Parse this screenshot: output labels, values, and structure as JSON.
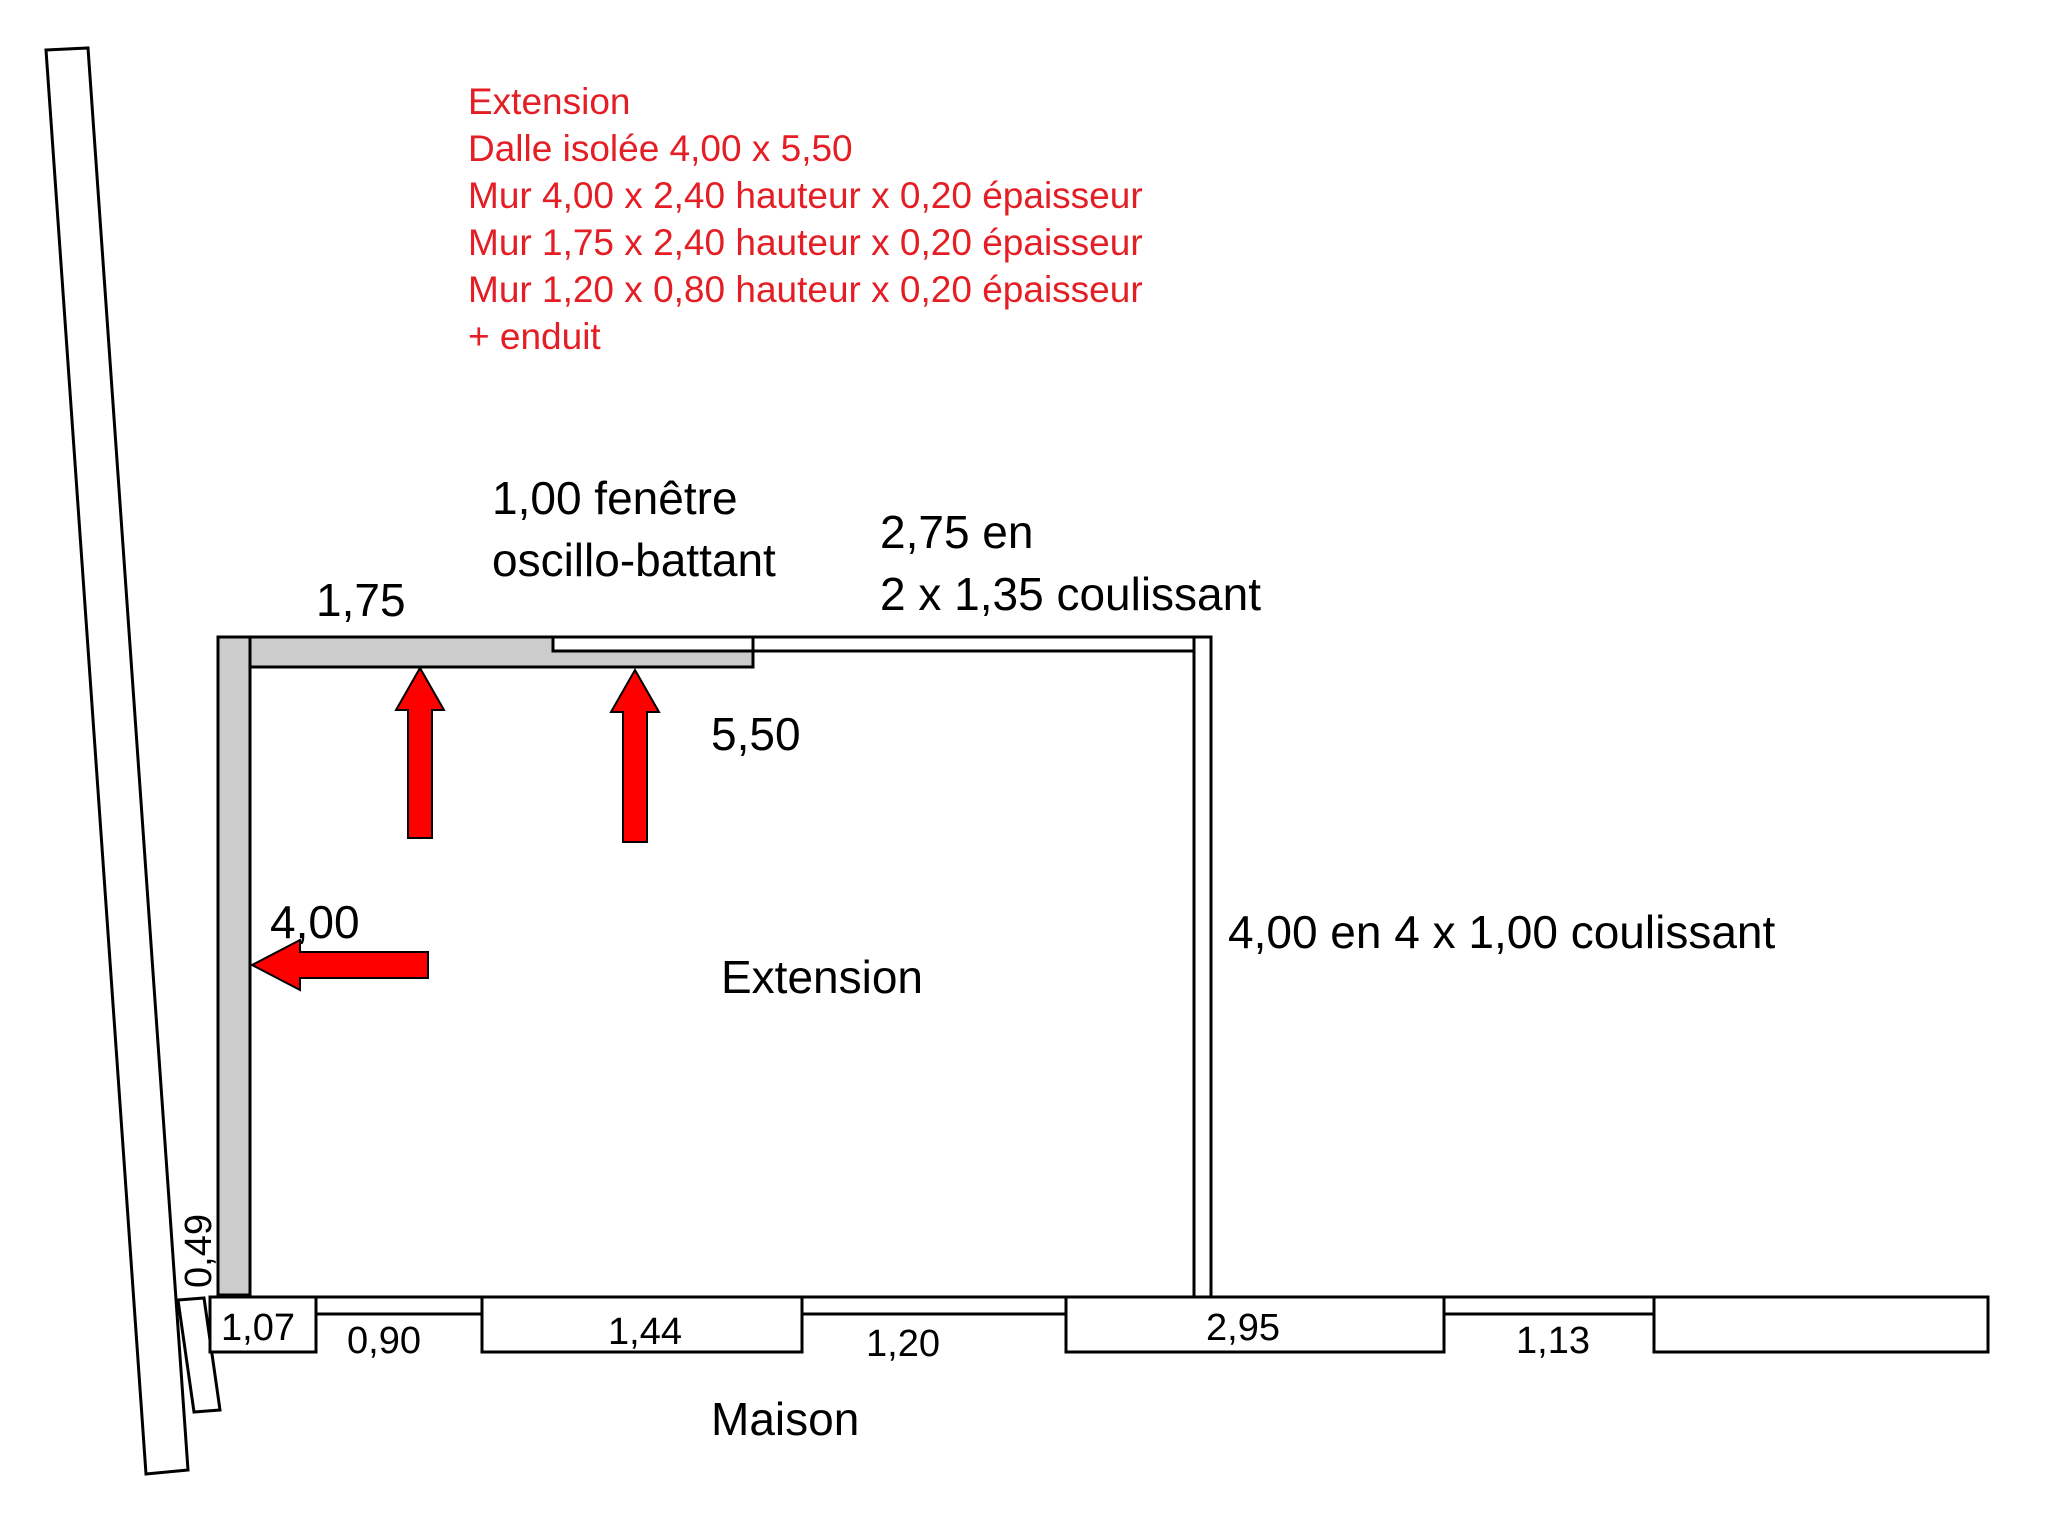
{
  "colors": {
    "annotation": "#e31e24",
    "arrow": "#ff0000",
    "wall_fill": "#cccccc",
    "line": "#000000"
  },
  "notes": {
    "lines": [
      "Extension",
      "Dalle isolée 4,00 x 5,50",
      "Mur 4,00 x 2,40 hauteur x 0,20 épaisseur",
      "Mur 1,75 x 2,40 hauteur x 0,20 épaisseur",
      "Mur 1,20 x 0,80 hauteur x 0,20 épaisseur",
      "+ enduit"
    ]
  },
  "plan": {
    "room_label": "Extension",
    "house_label": "Maison",
    "dim_top_wall": "1,75",
    "window_line1": "1,00 fenêtre",
    "window_line2": "oscillo-battant",
    "sliding_top_line1": "2,75 en",
    "sliding_top_line2": "2 x 1,35 coulissant",
    "dim_depth": "5,50",
    "dim_left_wall": "4,00",
    "sliding_right": "4,00 en 4 x 1,00 coulissant",
    "dim_gap": "0,49"
  },
  "house_segments": [
    "1,07",
    "0,90",
    "1,44",
    "1,20",
    "2,95",
    "1,13"
  ]
}
